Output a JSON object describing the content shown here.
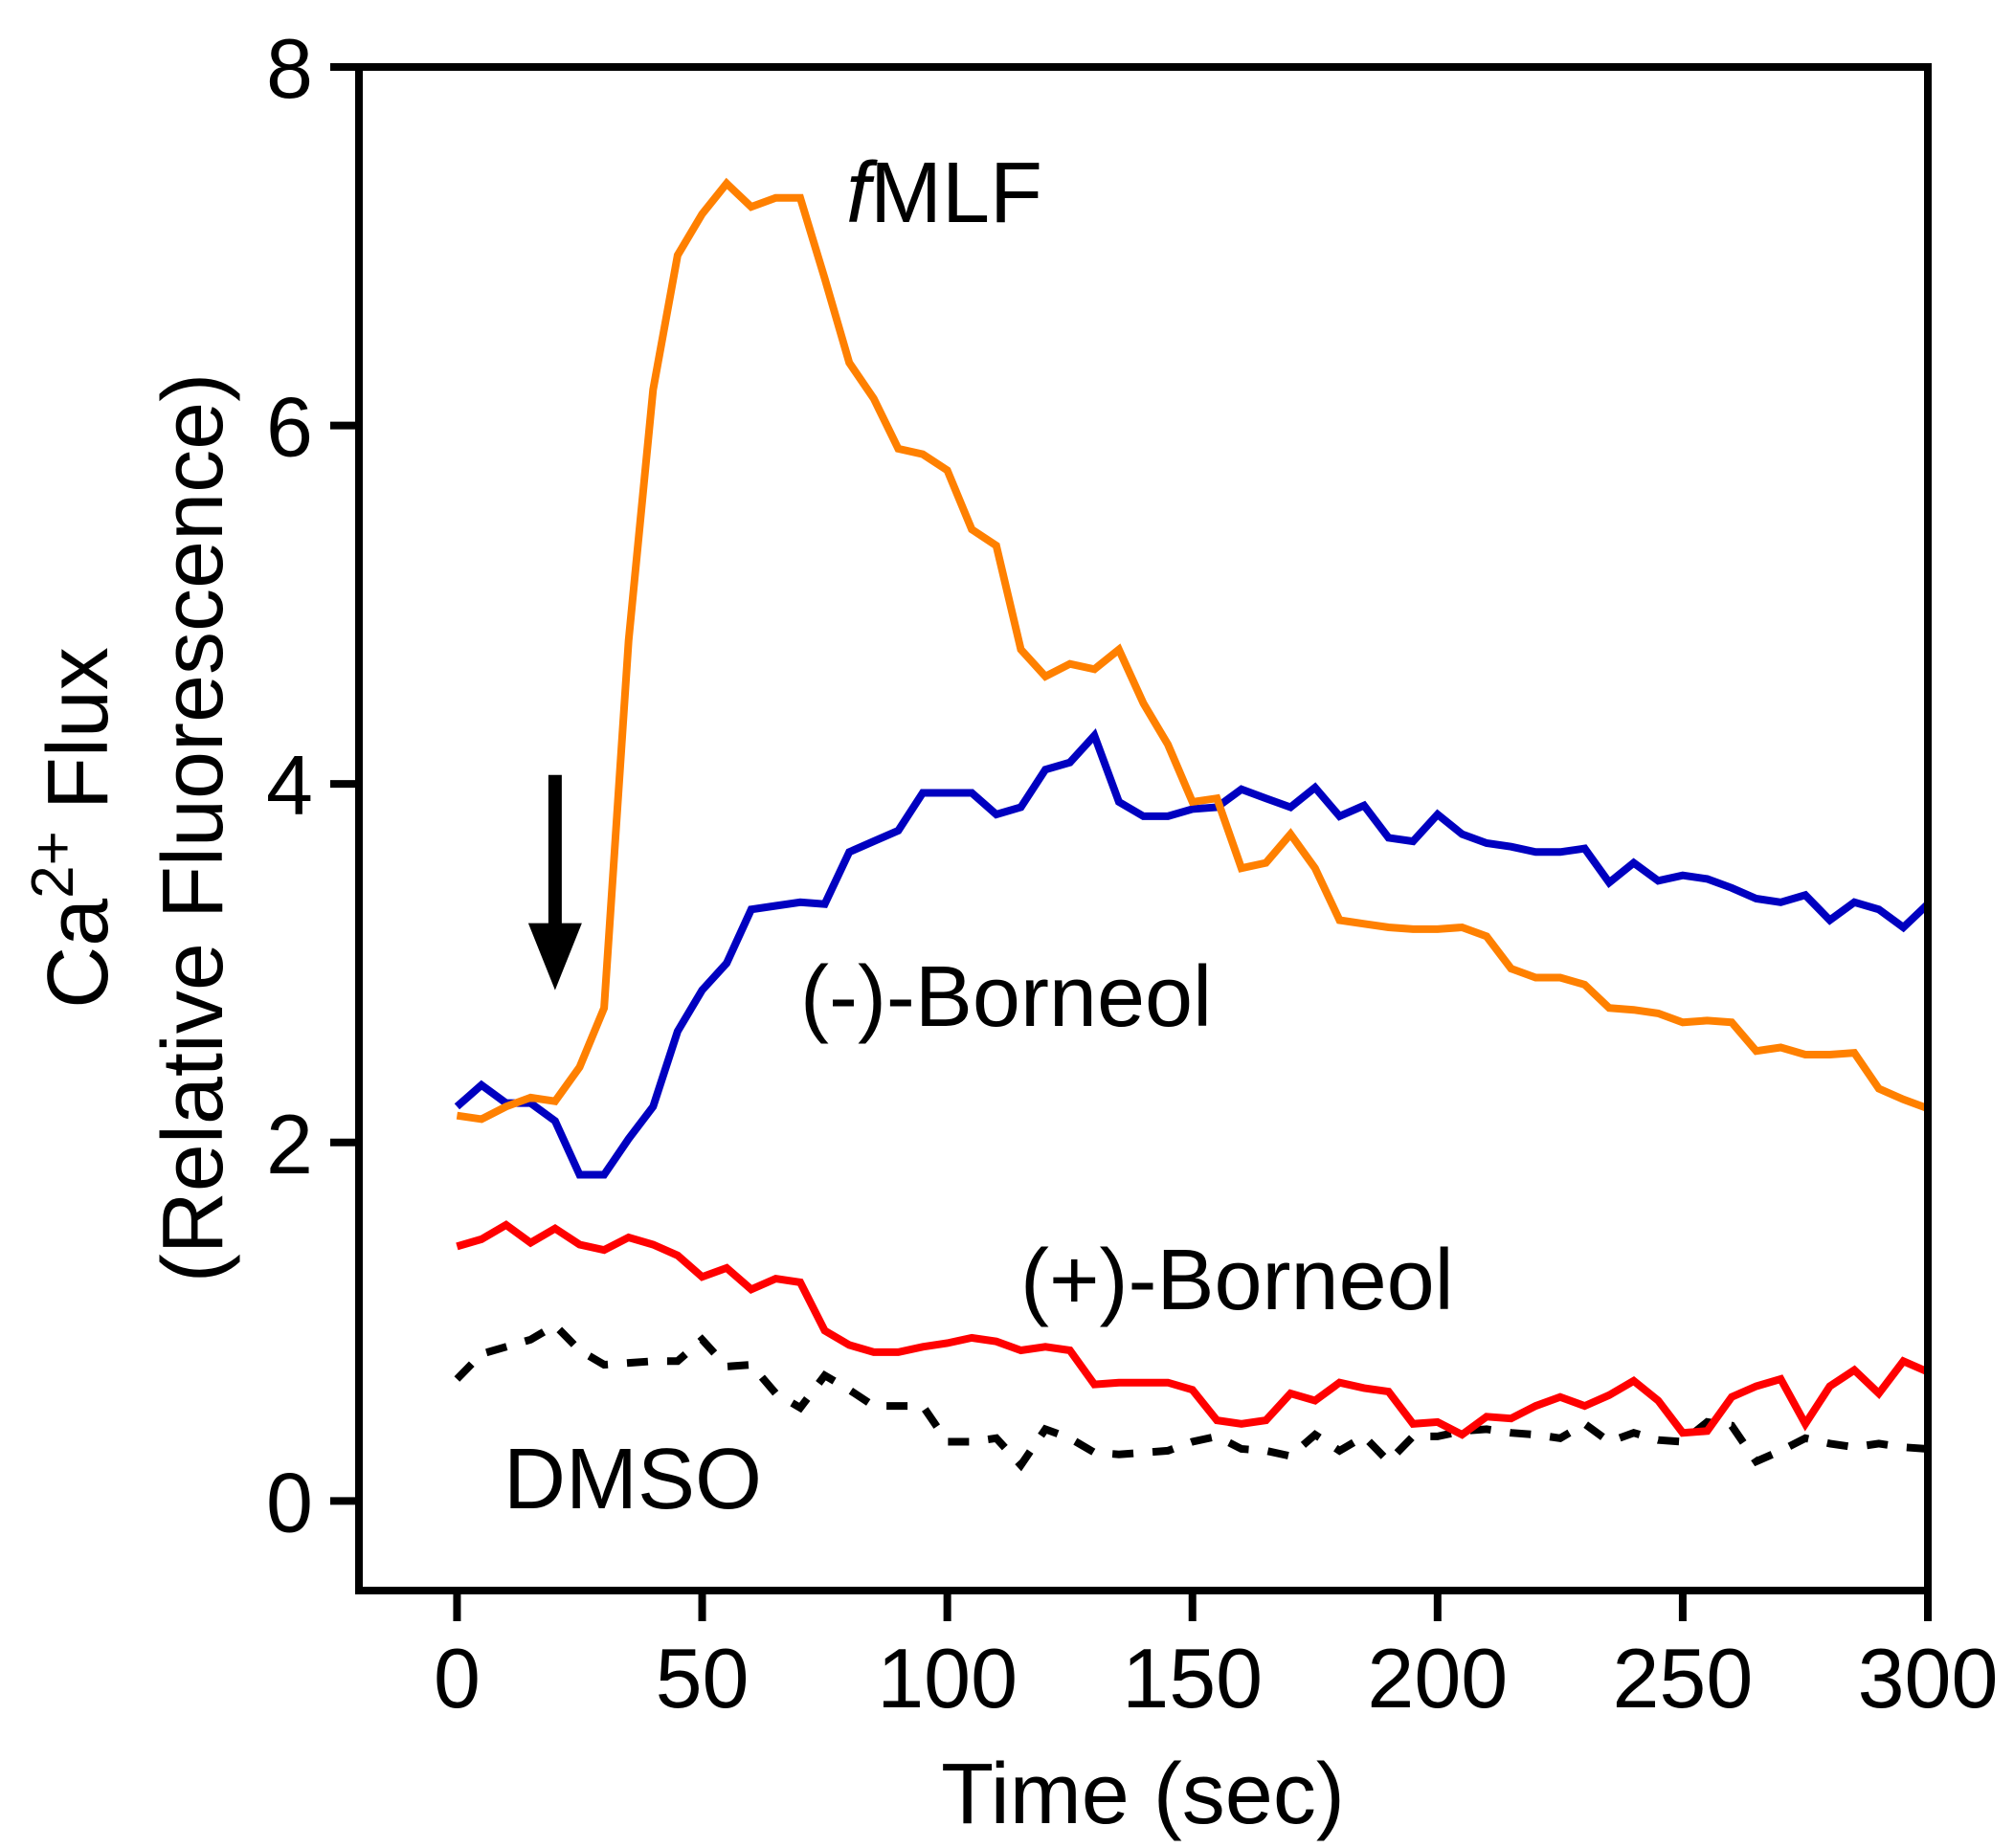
{
  "chart_data": {
    "type": "line",
    "title": "",
    "xlabel": "Time (sec)",
    "ylabel_line1": "Flux",
    "ylabel_ca": "Ca",
    "ylabel_sup": "2+",
    "ylabel_line2": "(Relative Fluorescence)",
    "xlim": [
      -20,
      300
    ],
    "ylim": [
      -0.5,
      8
    ],
    "xticks": [
      0,
      50,
      100,
      150,
      200,
      250,
      300
    ],
    "yticks": [
      0,
      2,
      4,
      6,
      8
    ],
    "grid": false,
    "x": [
      0,
      5,
      10,
      15,
      20,
      25,
      30,
      35,
      40,
      45,
      50,
      55,
      60,
      65,
      70,
      75,
      80,
      85,
      90,
      95,
      100,
      105,
      110,
      115,
      120,
      125,
      130,
      135,
      140,
      145,
      150,
      155,
      160,
      165,
      170,
      175,
      180,
      185,
      190,
      195,
      200,
      205,
      210,
      215,
      220,
      225,
      230,
      235,
      240,
      245,
      250,
      255,
      260,
      265,
      270,
      275,
      280,
      285,
      290,
      295,
      300
    ],
    "series": [
      {
        "name": "fMLF",
        "label_prefix": "f",
        "label_rest": "MLF",
        "color": "#FF8000",
        "dashed": false,
        "values": [
          2.15,
          2.13,
          2.2,
          2.25,
          2.23,
          2.42,
          2.75,
          4.8,
          6.2,
          6.95,
          7.18,
          7.35,
          7.22,
          7.27,
          7.27,
          6.82,
          6.35,
          6.15,
          5.87,
          5.84,
          5.75,
          5.42,
          5.33,
          4.75,
          4.6,
          4.67,
          4.64,
          4.75,
          4.45,
          4.22,
          3.9,
          3.92,
          3.53,
          3.56,
          3.72,
          3.53,
          3.24,
          3.22,
          3.2,
          3.19,
          3.19,
          3.2,
          3.15,
          2.97,
          2.92,
          2.92,
          2.88,
          2.75,
          2.74,
          2.72,
          2.67,
          2.68,
          2.67,
          2.51,
          2.53,
          2.49,
          2.49,
          2.5,
          2.3,
          2.24,
          2.19
        ]
      },
      {
        "name": "(-)-Borneol",
        "color": "#0000C0",
        "dashed": false,
        "values": [
          2.2,
          2.32,
          2.22,
          2.22,
          2.12,
          1.82,
          1.82,
          2.02,
          2.2,
          2.62,
          2.85,
          3.0,
          3.3,
          3.32,
          3.34,
          3.33,
          3.62,
          3.68,
          3.74,
          3.95,
          3.95,
          3.95,
          3.83,
          3.87,
          4.08,
          4.12,
          4.27,
          3.9,
          3.82,
          3.82,
          3.86,
          3.87,
          3.97,
          3.92,
          3.87,
          3.98,
          3.82,
          3.88,
          3.7,
          3.68,
          3.83,
          3.72,
          3.67,
          3.65,
          3.62,
          3.62,
          3.64,
          3.45,
          3.56,
          3.46,
          3.49,
          3.47,
          3.42,
          3.36,
          3.34,
          3.38,
          3.24,
          3.34,
          3.3,
          3.2,
          3.33
        ]
      },
      {
        "name": "(+)-Borneol",
        "color": "#FF0000",
        "dashed": false,
        "values": [
          1.42,
          1.46,
          1.54,
          1.44,
          1.52,
          1.43,
          1.4,
          1.47,
          1.43,
          1.37,
          1.25,
          1.3,
          1.18,
          1.24,
          1.22,
          0.95,
          0.87,
          0.83,
          0.83,
          0.86,
          0.88,
          0.91,
          0.89,
          0.84,
          0.86,
          0.84,
          0.65,
          0.66,
          0.66,
          0.66,
          0.62,
          0.45,
          0.43,
          0.45,
          0.6,
          0.56,
          0.66,
          0.63,
          0.61,
          0.43,
          0.44,
          0.37,
          0.47,
          0.46,
          0.53,
          0.58,
          0.53,
          0.59,
          0.67,
          0.56,
          0.38,
          0.39,
          0.58,
          0.64,
          0.68,
          0.43,
          0.64,
          0.73,
          0.6,
          0.78,
          0.72
        ]
      },
      {
        "name": "DMSO",
        "color": "#000000",
        "dashed": true,
        "values": [
          0.68,
          0.82,
          0.86,
          0.9,
          0.98,
          0.84,
          0.76,
          0.77,
          0.78,
          0.78,
          0.9,
          0.75,
          0.76,
          0.6,
          0.52,
          0.7,
          0.62,
          0.53,
          0.53,
          0.53,
          0.33,
          0.33,
          0.35,
          0.2,
          0.4,
          0.35,
          0.27,
          0.26,
          0.27,
          0.28,
          0.33,
          0.36,
          0.29,
          0.28,
          0.25,
          0.37,
          0.28,
          0.36,
          0.22,
          0.36,
          0.36,
          0.39,
          0.4,
          0.38,
          0.37,
          0.35,
          0.43,
          0.33,
          0.38,
          0.34,
          0.33,
          0.44,
          0.42,
          0.22,
          0.28,
          0.35,
          0.32,
          0.3,
          0.32,
          0.3,
          0.29
        ]
      }
    ],
    "annotations": [
      {
        "type": "arrow",
        "x": 20,
        "y_from": 4.05,
        "y_to": 2.85,
        "color": "#000000"
      }
    ]
  }
}
